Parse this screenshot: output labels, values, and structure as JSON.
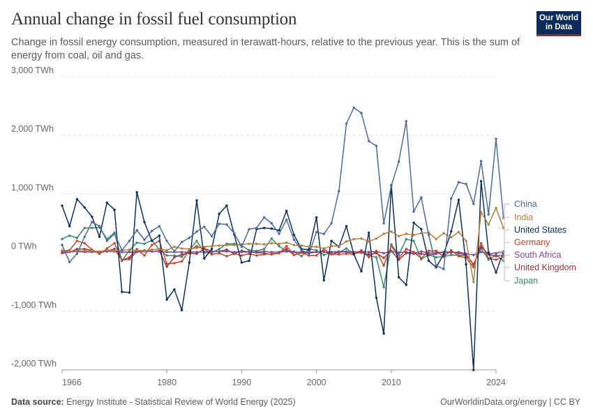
{
  "header": {
    "title": "Annual change in fossil fuel consumption",
    "subtitle": "Change in fossil energy consumption, measured in terawatt-hours, relative to the previous year. This is the sum of energy from coal, oil and gas."
  },
  "logo": {
    "line1": "Our World",
    "line2": "in Data"
  },
  "footer": {
    "source_label": "Data source:",
    "source_text": "Energy Institute - Statistical Review of World Energy (2025)",
    "url_text": "OurWorldinData.org/energy | CC BY"
  },
  "chart_data": {
    "type": "line",
    "title": "Annual change in fossil fuel consumption",
    "subtitle": "Change in fossil energy consumption, measured in terawatt-hours, relative to the previous year. This is the sum of energy from coal, oil and gas.",
    "xlabel": "",
    "ylabel": "",
    "xlim": [
      1966,
      2024
    ],
    "ylim": [
      -2000,
      3000
    ],
    "yticks": [
      -2000,
      -1000,
      0,
      1000,
      2000,
      3000
    ],
    "ytick_labels": [
      "-2,000 TWh",
      "-1,000 TWh",
      "0 TWh",
      "1,000 TWh",
      "2,000 TWh",
      "3,000 TWh"
    ],
    "xticks": [
      1966,
      1980,
      1990,
      2000,
      2010,
      2024
    ],
    "xtick_labels": [
      "1966",
      "1980",
      "1990",
      "2000",
      "2010",
      "2024"
    ],
    "grid": "horizontal dashed",
    "legend_position": "right",
    "x_start_year": 1966,
    "series": [
      {
        "name": "China",
        "color": "#4c6a9c",
        "values": [
          130,
          -160,
          -20,
          270,
          520,
          450,
          200,
          320,
          40,
          200,
          380,
          220,
          370,
          450,
          200,
          20,
          180,
          250,
          360,
          440,
          280,
          490,
          480,
          330,
          100,
          400,
          420,
          600,
          500,
          320,
          560,
          220,
          40,
          -20,
          350,
          320,
          500,
          1050,
          2200,
          2470,
          2380,
          1900,
          1820,
          500,
          1140,
          1550,
          2240,
          700,
          940,
          300,
          -220,
          -280,
          920,
          1200,
          1170,
          830,
          1560,
          650,
          1940,
          590
        ]
      },
      {
        "name": "India",
        "color": "#b17f40",
        "values": [
          40,
          20,
          30,
          30,
          30,
          20,
          40,
          30,
          40,
          50,
          40,
          30,
          50,
          60,
          40,
          100,
          70,
          60,
          80,
          100,
          110,
          120,
          130,
          130,
          140,
          150,
          150,
          140,
          160,
          150,
          170,
          130,
          120,
          100,
          100,
          70,
          110,
          110,
          190,
          230,
          240,
          190,
          240,
          320,
          360,
          280,
          320,
          300,
          330,
          340,
          230,
          330,
          260,
          350,
          200,
          -500,
          690,
          480,
          760,
          420
        ]
      },
      {
        "name": "United States",
        "color": "#0d2d5c",
        "values": [
          800,
          450,
          910,
          770,
          610,
          270,
          850,
          730,
          -670,
          -680,
          1030,
          520,
          200,
          290,
          -800,
          -630,
          -980,
          -170,
          890,
          -100,
          60,
          660,
          800,
          310,
          -170,
          -140,
          400,
          420,
          410,
          380,
          710,
          300,
          60,
          50,
          600,
          -470,
          200,
          100,
          450,
          -30,
          -320,
          340,
          -770,
          -1380,
          1150,
          -420,
          -550,
          510,
          400,
          -140,
          -250,
          -30,
          360,
          900,
          -200,
          -2000,
          1220,
          0,
          -340,
          20
        ]
      },
      {
        "name": "Germany",
        "color": "#c0462b",
        "values": [
          30,
          40,
          200,
          160,
          50,
          -20,
          70,
          160,
          -130,
          -80,
          60,
          -50,
          130,
          200,
          -190,
          -180,
          -150,
          40,
          110,
          60,
          -30,
          -10,
          -60,
          -20,
          -50,
          -20,
          -50,
          -30,
          -20,
          -10,
          110,
          -40,
          0,
          -50,
          -50,
          60,
          -30,
          -30,
          -20,
          -30,
          40,
          -80,
          30,
          -220,
          120,
          -90,
          60,
          10,
          -100,
          30,
          30,
          -70,
          40,
          -60,
          -90,
          -250,
          160,
          -100,
          -120,
          -80
        ]
      },
      {
        "name": "South Africa",
        "color": "#7d4ba2",
        "values": [
          10,
          10,
          20,
          10,
          10,
          10,
          20,
          20,
          10,
          10,
          10,
          20,
          20,
          20,
          10,
          10,
          10,
          10,
          10,
          10,
          20,
          20,
          20,
          10,
          10,
          10,
          10,
          20,
          10,
          10,
          20,
          10,
          10,
          10,
          10,
          10,
          10,
          20,
          20,
          10,
          20,
          10,
          20,
          -10,
          20,
          0,
          10,
          -10,
          20,
          -10,
          0,
          10,
          0,
          10,
          -20,
          -40,
          10,
          -20,
          -10,
          10
        ]
      },
      {
        "name": "United Kingdom",
        "color": "#9a3446",
        "values": [
          -10,
          10,
          60,
          60,
          40,
          0,
          30,
          60,
          -130,
          -110,
          20,
          40,
          20,
          30,
          -240,
          -80,
          -30,
          -10,
          -20,
          70,
          20,
          20,
          50,
          -20,
          30,
          10,
          0,
          -10,
          -30,
          -10,
          60,
          -40,
          0,
          -10,
          10,
          20,
          -30,
          10,
          10,
          -10,
          0,
          -30,
          -10,
          -90,
          30,
          -120,
          -10,
          -20,
          -20,
          -40,
          -20,
          10,
          10,
          -10,
          -40,
          -200,
          100,
          -30,
          -60,
          -40
        ]
      },
      {
        "name": "Japan",
        "color": "#3a8b6a",
        "values": [
          230,
          290,
          250,
          420,
          420,
          430,
          230,
          340,
          -140,
          40,
          170,
          150,
          210,
          50,
          -50,
          -50,
          -70,
          40,
          200,
          0,
          0,
          60,
          150,
          150,
          120,
          40,
          30,
          60,
          240,
          110,
          20,
          20,
          -60,
          60,
          40,
          -40,
          10,
          0,
          70,
          -20,
          30,
          -50,
          -80,
          -590,
          140,
          -40,
          230,
          200,
          -110,
          -40,
          -80,
          -70,
          -40,
          -50,
          -50,
          -200,
          70,
          -120,
          -40,
          -140
        ]
      }
    ]
  }
}
